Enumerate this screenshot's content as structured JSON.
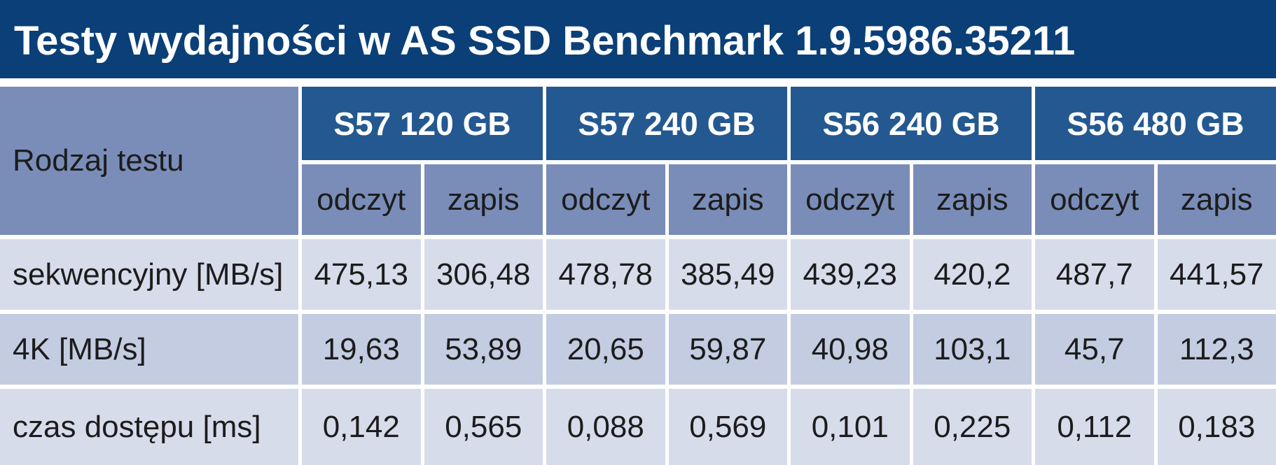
{
  "header": {
    "title": "Testy wydajności w AS SSD Benchmark 1.9.5986.35211"
  },
  "table": {
    "corner": "Rodzaj testu",
    "groups": [
      "S57 120 GB",
      "S57 240 GB",
      "S56 240 GB",
      "S56 480 GB"
    ],
    "subheaders": [
      "odczyt",
      "zapis",
      "odczyt",
      "zapis",
      "odczyt",
      "zapis",
      "odczyt",
      "zapis"
    ],
    "rows": [
      {
        "label": "sekwencyjny [MB/s]",
        "values": [
          "475,13",
          "306,48",
          "478,78",
          "385,49",
          "439,23",
          "420,2",
          "487,7",
          "441,57"
        ]
      },
      {
        "label": "4K [MB/s]",
        "values": [
          "19,63",
          "53,89",
          "20,65",
          "59,87",
          "40,98",
          "103,1",
          "45,7",
          "112,3"
        ]
      },
      {
        "label": "czas dostępu [ms]",
        "values": [
          "0,142",
          "0,565",
          "0,088",
          "0,569",
          "0,101",
          "0,225",
          "0,112",
          "0,183"
        ]
      }
    ]
  }
}
